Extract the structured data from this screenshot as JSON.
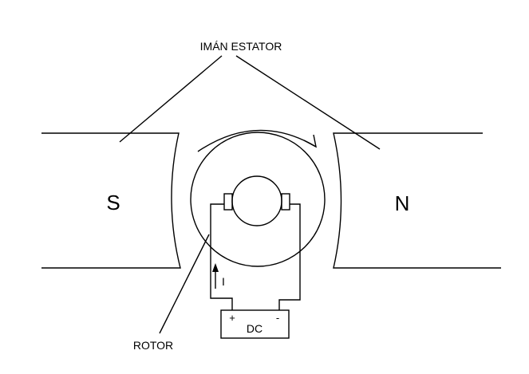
{
  "labels": {
    "stator_magnet": "IMÁN ESTATOR",
    "pole_south": "S",
    "pole_north": "N",
    "rotor": "ROTOR",
    "current": "I",
    "battery": "DC",
    "plus": "+",
    "minus": "-"
  },
  "colors": {
    "stroke": "#000000",
    "background": "#ffffff"
  }
}
